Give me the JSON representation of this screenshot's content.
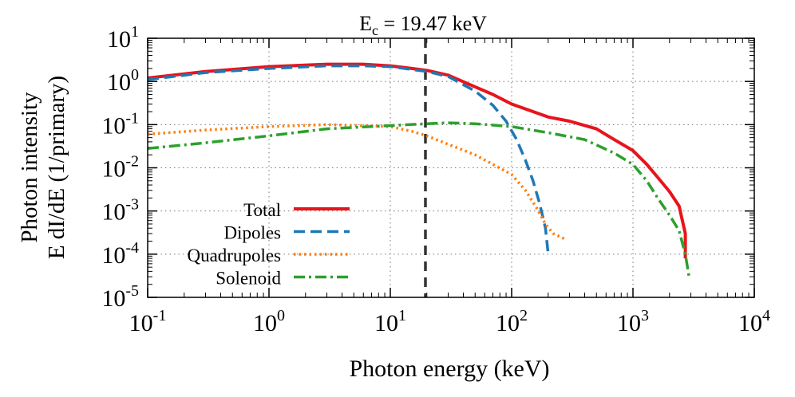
{
  "chart_data": {
    "type": "line",
    "title": {
      "prefix": "E",
      "subscript": "c",
      "suffix": " = 19.47 keV"
    },
    "xlabel": "Photon energy (keV)",
    "ylabel_line1": "Photon intensity",
    "ylabel_line2": "E dI/dE (1/primary)",
    "x_scale": "log",
    "y_scale": "log",
    "xlim": [
      0.1,
      10000
    ],
    "ylim": [
      1e-05,
      10
    ],
    "x_ticks": [
      {
        "value": 0.1,
        "base": "10",
        "exp": "-1"
      },
      {
        "value": 1,
        "base": "10",
        "exp": "0"
      },
      {
        "value": 10,
        "base": "10",
        "exp": "1"
      },
      {
        "value": 100,
        "base": "10",
        "exp": "2"
      },
      {
        "value": 1000,
        "base": "10",
        "exp": "3"
      },
      {
        "value": 10000,
        "base": "10",
        "exp": "4"
      }
    ],
    "y_ticks": [
      {
        "value": 1e-05,
        "base": "10",
        "exp": "-5"
      },
      {
        "value": 0.0001,
        "base": "10",
        "exp": "-4"
      },
      {
        "value": 0.001,
        "base": "10",
        "exp": "-3"
      },
      {
        "value": 0.01,
        "base": "10",
        "exp": "-2"
      },
      {
        "value": 0.1,
        "base": "10",
        "exp": "-1"
      },
      {
        "value": 1,
        "base": "10",
        "exp": "0"
      },
      {
        "value": 10,
        "base": "10",
        "exp": "1"
      }
    ],
    "grid": true,
    "critical_energy": 19.47,
    "legend_position": "bottom-left",
    "series": [
      {
        "name": "Total",
        "color": "#e8141c",
        "style": "solid",
        "points": [
          [
            0.1,
            1.2
          ],
          [
            0.3,
            1.7
          ],
          [
            1,
            2.2
          ],
          [
            3,
            2.5
          ],
          [
            6,
            2.5
          ],
          [
            10,
            2.3
          ],
          [
            15,
            2.0
          ],
          [
            20,
            1.8
          ],
          [
            30,
            1.4
          ],
          [
            50,
            0.75
          ],
          [
            70,
            0.5
          ],
          [
            100,
            0.3
          ],
          [
            150,
            0.2
          ],
          [
            200,
            0.15
          ],
          [
            300,
            0.12
          ],
          [
            500,
            0.08
          ],
          [
            700,
            0.045
          ],
          [
            1000,
            0.025
          ],
          [
            1300,
            0.012
          ],
          [
            1600,
            0.006
          ],
          [
            2000,
            0.0028
          ],
          [
            2400,
            0.0013
          ],
          [
            2700,
            0.0003
          ],
          [
            2700,
            8e-05
          ]
        ]
      },
      {
        "name": "Dipoles",
        "color": "#1f78b4",
        "style": "dashed",
        "points": [
          [
            0.1,
            1.1
          ],
          [
            0.3,
            1.6
          ],
          [
            1,
            2.0
          ],
          [
            3,
            2.3
          ],
          [
            6,
            2.3
          ],
          [
            10,
            2.2
          ],
          [
            20,
            1.7
          ],
          [
            30,
            1.3
          ],
          [
            50,
            0.6
          ],
          [
            70,
            0.28
          ],
          [
            90,
            0.12
          ],
          [
            110,
            0.045
          ],
          [
            130,
            0.015
          ],
          [
            150,
            0.005
          ],
          [
            170,
            0.0015
          ],
          [
            190,
            0.0004
          ],
          [
            200,
            0.0001
          ]
        ]
      },
      {
        "name": "Quadrupoles",
        "color": "#ff7f0e",
        "style": "dotted",
        "points": [
          [
            0.1,
            0.06
          ],
          [
            0.3,
            0.075
          ],
          [
            1,
            0.09
          ],
          [
            3,
            0.1
          ],
          [
            10,
            0.09
          ],
          [
            15,
            0.07
          ],
          [
            20,
            0.055
          ],
          [
            30,
            0.035
          ],
          [
            50,
            0.02
          ],
          [
            70,
            0.012
          ],
          [
            100,
            0.007
          ],
          [
            130,
            0.003
          ],
          [
            160,
            0.0012
          ],
          [
            190,
            0.0005
          ],
          [
            220,
            0.0003
          ],
          [
            280,
            0.00022
          ]
        ]
      },
      {
        "name": "Solenoid",
        "color": "#2ca02c",
        "style": "dashdot",
        "points": [
          [
            0.1,
            0.028
          ],
          [
            0.3,
            0.038
          ],
          [
            1,
            0.055
          ],
          [
            3,
            0.08
          ],
          [
            10,
            0.095
          ],
          [
            20,
            0.105
          ],
          [
            30,
            0.11
          ],
          [
            50,
            0.105
          ],
          [
            100,
            0.09
          ],
          [
            200,
            0.065
          ],
          [
            400,
            0.045
          ],
          [
            700,
            0.022
          ],
          [
            1000,
            0.012
          ],
          [
            1300,
            0.005
          ],
          [
            1600,
            0.002
          ],
          [
            2000,
            0.0008
          ],
          [
            2400,
            0.00035
          ],
          [
            2700,
            0.0001
          ],
          [
            2900,
            3e-05
          ]
        ]
      }
    ]
  }
}
